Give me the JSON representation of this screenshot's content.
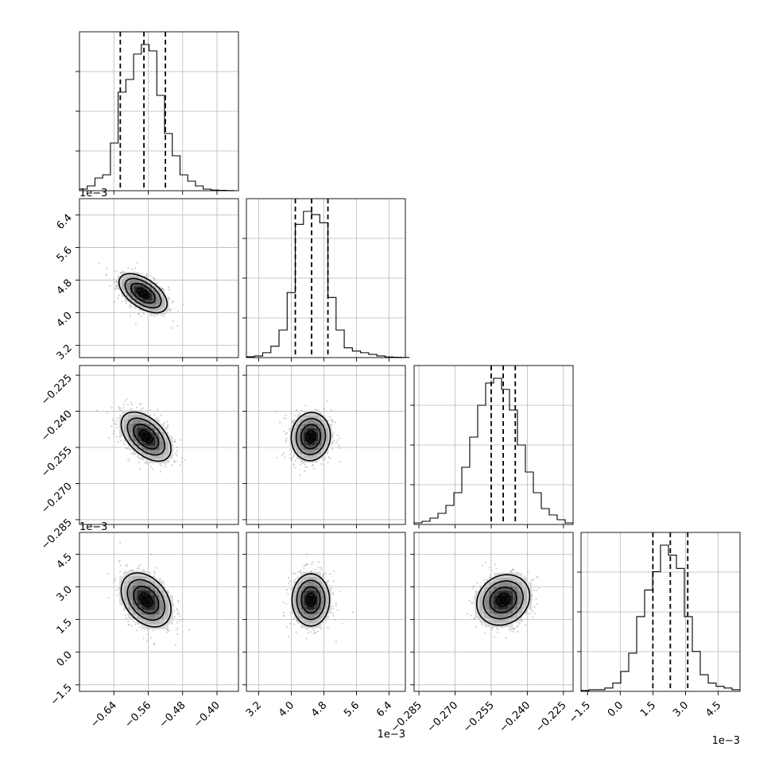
{
  "chart_data": {
    "type": "corner",
    "grid": true,
    "parameters": [
      {
        "index": 0,
        "median": -0.57,
        "quantiles": [
          -0.625,
          -0.57,
          -0.52
        ],
        "range": [
          -0.72,
          -0.35
        ],
        "ticks": [
          -0.64,
          -0.56,
          -0.48,
          -0.4
        ],
        "tick_labels": [
          "−0.64",
          "−0.56",
          "−0.48",
          "−0.40"
        ],
        "offset_label": ""
      },
      {
        "index": 1,
        "median": 0.0045,
        "quantiles": [
          0.0041,
          0.0045,
          0.0049
        ],
        "range": [
          0.0029,
          0.0068
        ],
        "ticks": [
          0.0032,
          0.004,
          0.0048,
          0.0056,
          0.0064
        ],
        "tick_labels": [
          "3.2",
          "4.0",
          "4.8",
          "5.6",
          "6.4"
        ],
        "offset_label": "1e−3"
      },
      {
        "index": 2,
        "median": -0.25,
        "quantiles": [
          -0.255,
          -0.25,
          -0.245
        ],
        "range": [
          -0.287,
          -0.221
        ],
        "ticks": [
          -0.285,
          -0.27,
          -0.255,
          -0.24,
          -0.225
        ],
        "tick_labels": [
          "−0.285",
          "−0.270",
          "−0.255",
          "−0.240",
          "−0.225"
        ],
        "offset_label": ""
      },
      {
        "index": 3,
        "median": 0.0023,
        "quantiles": [
          0.0015,
          0.0023,
          0.0031
        ],
        "range": [
          -0.0018,
          0.0055
        ],
        "ticks": [
          -0.0015,
          0.0,
          0.0015,
          0.003,
          0.0045
        ],
        "tick_labels": [
          "−1.5",
          "0.0",
          "1.5",
          "3.0",
          "4.5"
        ],
        "offset_label": "1e−3"
      }
    ],
    "histograms_1d": [
      {
        "param": 0,
        "bin_edges_start": -0.72,
        "bin_width": 0.018,
        "counts": [
          0.01,
          0.03,
          0.08,
          0.1,
          0.3,
          0.62,
          0.7,
          0.86,
          0.92,
          0.88,
          0.6,
          0.36,
          0.22,
          0.1,
          0.06,
          0.03,
          0.01,
          0.004,
          0.002,
          0.001
        ]
      },
      {
        "param": 1,
        "bin_edges_start": 0.0029,
        "bin_width": 0.0002,
        "counts": [
          0.005,
          0.01,
          0.03,
          0.07,
          0.17,
          0.4,
          0.82,
          0.9,
          0.88,
          0.83,
          0.37,
          0.17,
          0.06,
          0.04,
          0.03,
          0.02,
          0.01,
          0.004,
          0.002,
          0.001
        ]
      },
      {
        "param": 2,
        "bin_edges_start": -0.287,
        "bin_width": 0.0033,
        "counts": [
          0.01,
          0.02,
          0.04,
          0.07,
          0.12,
          0.2,
          0.36,
          0.55,
          0.75,
          0.89,
          0.92,
          0.85,
          0.72,
          0.5,
          0.33,
          0.2,
          0.1,
          0.06,
          0.03,
          0.01
        ]
      },
      {
        "param": 3,
        "bin_edges_start": -0.0018,
        "bin_width": 0.000365,
        "counts": [
          0.005,
          0.01,
          0.01,
          0.02,
          0.05,
          0.12,
          0.23,
          0.45,
          0.61,
          0.72,
          0.88,
          0.82,
          0.74,
          0.45,
          0.24,
          0.1,
          0.05,
          0.03,
          0.02,
          0.01
        ]
      }
    ],
    "contours_2d": [
      {
        "x_param": 0,
        "y_param": 1,
        "center": [
          -0.572,
          0.00448
        ],
        "sigma": [
          0.028,
          0.00024
        ],
        "rho": -0.55
      },
      {
        "x_param": 0,
        "y_param": 2,
        "center": [
          -0.565,
          -0.2505
        ],
        "sigma": [
          0.029,
          0.0051
        ],
        "rho": -0.5
      },
      {
        "x_param": 1,
        "y_param": 2,
        "center": [
          0.00448,
          -0.2505
        ],
        "sigma": [
          0.00024,
          0.005
        ],
        "rho": 0.05
      },
      {
        "x_param": 0,
        "y_param": 3,
        "center": [
          -0.565,
          0.0024
        ],
        "sigma": [
          0.029,
          0.00062
        ],
        "rho": -0.35
      },
      {
        "x_param": 1,
        "y_param": 3,
        "center": [
          0.00448,
          0.0024
        ],
        "sigma": [
          0.00023,
          0.0006
        ],
        "rho": 0.0
      },
      {
        "x_param": 2,
        "y_param": 3,
        "center": [
          -0.25,
          0.0024
        ],
        "sigma": [
          0.0055,
          0.00058
        ],
        "rho": 0.15
      }
    ],
    "contour_levels_sigma": [
      0.5,
      1.0,
      1.5,
      2.0
    ]
  }
}
